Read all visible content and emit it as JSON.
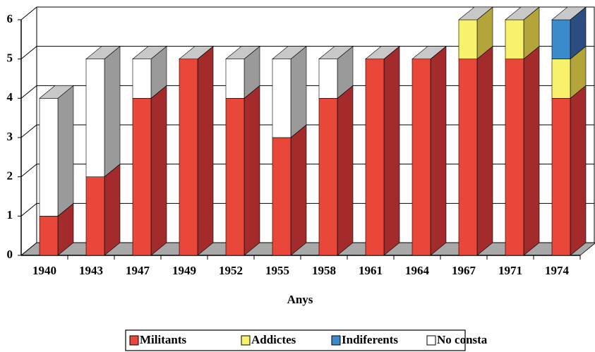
{
  "chart_data": {
    "type": "bar3d_stacked",
    "x_label": "Anys",
    "categories": [
      "1940",
      "1943",
      "1947",
      "1949",
      "1952",
      "1955",
      "1958",
      "1961",
      "1964",
      "1967",
      "1971",
      "1974"
    ],
    "series": [
      {
        "name": "Militants",
        "color": "#e8473a",
        "side_color": "#a32b2b",
        "values": [
          1,
          2,
          4,
          5,
          4,
          3,
          4,
          5,
          5,
          5,
          5,
          4
        ]
      },
      {
        "name": "Addictes",
        "color": "#f8f16c",
        "side_color": "#b3a53a",
        "values": [
          0,
          0,
          0,
          0,
          0,
          0,
          0,
          0,
          0,
          1,
          1,
          1
        ]
      },
      {
        "name": "Indiferents",
        "color": "#3b8acb",
        "side_color": "#2b4d80",
        "values": [
          0,
          0,
          0,
          0,
          0,
          0,
          0,
          0,
          0,
          0,
          0,
          1
        ]
      },
      {
        "name": "No consta",
        "color": "#ffffff",
        "side_color": "#9a9a9a",
        "values": [
          3,
          3,
          1,
          0,
          1,
          2,
          1,
          0,
          0,
          0,
          0,
          0
        ]
      }
    ],
    "ylim": [
      0,
      6
    ],
    "yticks": [
      0,
      1,
      2,
      3,
      4,
      5,
      6
    ],
    "grid": true,
    "legend": "bottom"
  }
}
